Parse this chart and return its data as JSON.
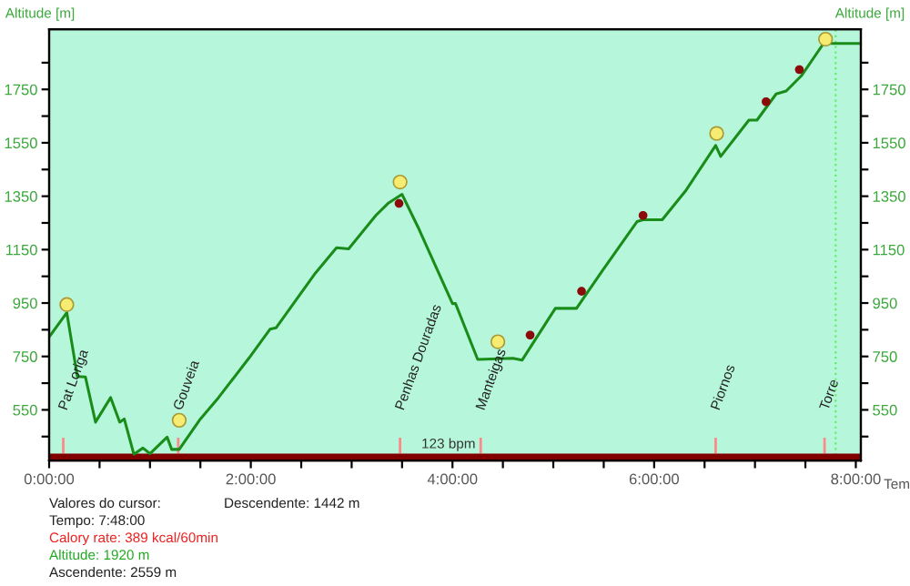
{
  "chart_data": {
    "type": "line",
    "xlabel": "Tem",
    "ylabel": "Altitude [m]",
    "y2label": "Altitude [m]",
    "xlim": [
      0,
      8.05
    ],
    "ylim": [
      360,
      1975
    ],
    "y2lim": [
      360,
      1975
    ],
    "xticks": [
      {
        "value": 0,
        "label": "0:00:00"
      },
      {
        "value": 0.5,
        "label": null
      },
      {
        "value": 1,
        "label": null
      },
      {
        "value": 1.5,
        "label": null
      },
      {
        "value": 2,
        "label": "2:00:00"
      },
      {
        "value": 2.5,
        "label": null
      },
      {
        "value": 3,
        "label": null
      },
      {
        "value": 3.5,
        "label": null
      },
      {
        "value": 4,
        "label": "4:00:00"
      },
      {
        "value": 4.5,
        "label": null
      },
      {
        "value": 5,
        "label": null
      },
      {
        "value": 5.5,
        "label": null
      },
      {
        "value": 6,
        "label": "6:00:00"
      },
      {
        "value": 6.5,
        "label": null
      },
      {
        "value": 7,
        "label": null
      },
      {
        "value": 7.5,
        "label": null
      },
      {
        "value": 8,
        "label": "8:00:00"
      }
    ],
    "yticks": [
      {
        "value": 450,
        "label": null
      },
      550,
      {
        "value": 650,
        "label": null
      },
      750,
      {
        "value": 850,
        "label": null
      },
      950,
      {
        "value": 1050,
        "label": null
      },
      1150,
      {
        "value": 1250,
        "label": null
      },
      1350,
      {
        "value": 1450,
        "label": null
      },
      1550,
      {
        "value": 1650,
        "label": null
      },
      1750,
      {
        "value": 1850,
        "label": null
      }
    ],
    "y2ticks": [
      {
        "value": 450,
        "label": null
      },
      550,
      {
        "value": 650,
        "label": null
      },
      750,
      {
        "value": 850,
        "label": null
      },
      950,
      {
        "value": 1050,
        "label": null
      },
      1150,
      {
        "value": 1250,
        "label": null
      },
      1350,
      {
        "value": 1450,
        "label": null
      },
      1550,
      {
        "value": 1650,
        "label": null
      },
      1750,
      {
        "value": 1850,
        "label": null
      }
    ],
    "grid": false,
    "series": [
      {
        "color": "#1a8c1a",
        "marker": "none",
        "line_style": "solid",
        "x": [
          0,
          0.175,
          0.28,
          0.36,
          0.46,
          0.61,
          0.7,
          0.745,
          0.84,
          0.93,
          1.0,
          1.17,
          1.215,
          1.29,
          1.5,
          1.68,
          1.98,
          2.19,
          2.25,
          2.64,
          2.85,
          2.97,
          3.24,
          3.36,
          3.5,
          3.66,
          4.0,
          4.03,
          4.25,
          4.6,
          4.69,
          5.02,
          5.23,
          5.47,
          5.83,
          5.89,
          6.08,
          6.31,
          6.61,
          6.66,
          6.94,
          7.02,
          7.21,
          7.31,
          7.46,
          7.68,
          7.77,
          8.05
        ],
        "values": [
          823,
          914,
          675,
          673,
          504,
          596,
          504,
          516,
          384,
          407,
          386,
          448,
          402,
          402,
          516,
          596,
          743,
          852,
          857,
          1062,
          1157,
          1153,
          1278,
          1323,
          1357,
          1233,
          948,
          948,
          739,
          743,
          736,
          930,
          930,
          1062,
          1255,
          1262,
          1262,
          1369,
          1540,
          1499,
          1635,
          1635,
          1733,
          1744,
          1801,
          1922,
          1922,
          1922
        ]
      },
      {
        "type": "scatter",
        "color": "#f7ec72",
        "marker": "circle",
        "x": [
          0.175,
          1.29,
          3.48,
          4.45,
          6.62,
          7.7
        ],
        "values": [
          944,
          511,
          1403,
          805,
          1585,
          1938
        ]
      },
      {
        "type": "scatter",
        "color": "#8b0a0a",
        "marker": "circle",
        "x": [
          3.47,
          4.77,
          5.28,
          5.89,
          7.11,
          7.44
        ],
        "values": [
          1323,
          830,
          994,
          1278,
          1704,
          1824
        ]
      },
      {
        "type": "area",
        "color": "#800000",
        "x": [
          0,
          8.05
        ],
        "values": [
          386,
          386
        ]
      },
      {
        "type": "bar",
        "color": "#ff8888",
        "x": [
          0.14,
          1.28,
          3.48,
          4.28,
          6.61,
          7.69
        ],
        "base": [
          386,
          386,
          386,
          386,
          386,
          386
        ],
        "values": [
          60,
          60,
          60,
          60,
          60,
          60
        ]
      }
    ],
    "ref_lines": [
      {
        "axis": "x",
        "value": 7.8,
        "color": "#66ee66",
        "line_style": "dotted"
      }
    ],
    "annotations": [
      {
        "text": "123 bpm",
        "x": 3.96,
        "y": 386
      },
      {
        "text": "Pat Loriga",
        "x": 0.14,
        "y": 446
      },
      {
        "text": "Gouveia",
        "x": 1.28,
        "y": 446
      },
      {
        "text": "Penhas Douradas",
        "x": 3.48,
        "y": 446
      },
      {
        "text": "Manteigas",
        "x": 4.28,
        "y": 446
      },
      {
        "text": "Piornos",
        "x": 6.61,
        "y": 446
      },
      {
        "text": "Torre",
        "x": 7.69,
        "y": 446
      },
      "Valores do cursor:",
      "Tempo: 7:48:00",
      "Calory rate: 389 kcal/60min",
      "Altitude: 1920 m",
      "Ascendente: 2559 m",
      "Descendente: 1442 m"
    ]
  }
}
